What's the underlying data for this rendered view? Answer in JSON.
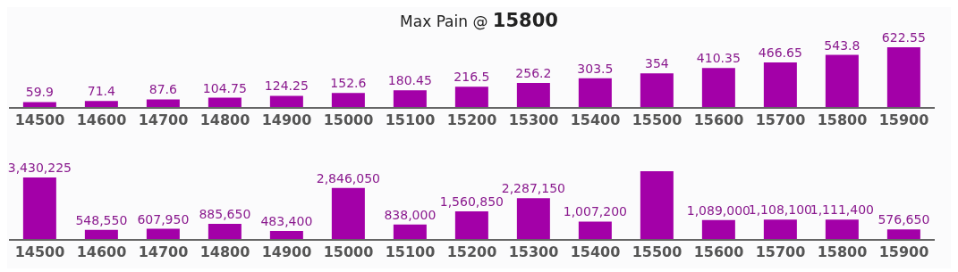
{
  "chart_data": [
    {
      "type": "bar",
      "title": "Max Pain @ 15800",
      "categories": [
        "14500",
        "14600",
        "14700",
        "14800",
        "14900",
        "15000",
        "15100",
        "15200",
        "15300",
        "15400",
        "15500",
        "15600",
        "15700",
        "15800",
        "15900"
      ],
      "values": [
        59.9,
        71.4,
        87.6,
        104.75,
        124.25,
        152.6,
        180.45,
        216.5,
        256.2,
        303.5,
        354,
        410.35,
        466.65,
        543.8,
        622.55
      ],
      "color": "#a300a8",
      "data_labels": true,
      "tick_labels": "x"
    },
    {
      "type": "bar",
      "categories": [
        "14500",
        "14600",
        "14700",
        "14800",
        "14900",
        "15000",
        "15100",
        "15200",
        "15300",
        "15400",
        "15500",
        "15600",
        "15700",
        "15800",
        "15900"
      ],
      "values": [
        3430225,
        548550,
        607950,
        885650,
        483400,
        2846050,
        838000,
        1560850,
        2287150,
        1007200,
        3770000,
        1089000,
        1108100,
        1111400,
        576650
      ],
      "value_labels": [
        "3,430,225",
        "548,550",
        "607,950",
        "885,650",
        "483,400",
        "2,846,050",
        "838,000",
        "1,560,850",
        "2,287,150",
        "1,007,200",
        null,
        "1,089,000",
        "1,108,100",
        "1,111,400",
        "576,650"
      ],
      "color": "#a300a8",
      "tick_labels": "x"
    }
  ]
}
